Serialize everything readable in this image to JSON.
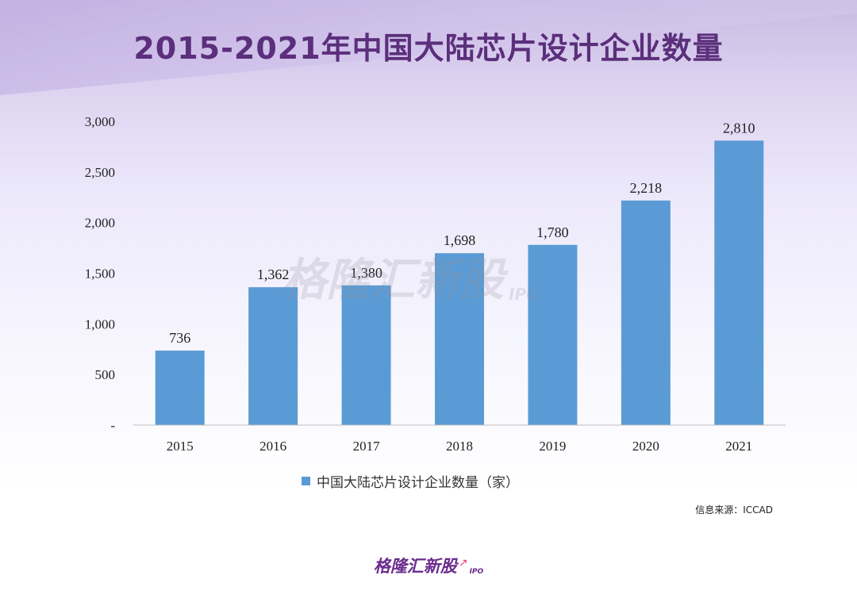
{
  "title": "2015-2021年中国大陆芯片设计企业数量",
  "chart_data": {
    "type": "bar",
    "title": "2015-2021年中国大陆芯片设计企业数量",
    "categories": [
      "2015",
      "2016",
      "2017",
      "2018",
      "2019",
      "2020",
      "2021"
    ],
    "series": [
      {
        "name": "中国大陆芯片设计企业数量（家）",
        "values": [
          736,
          1362,
          1380,
          1698,
          1780,
          2218,
          2810
        ],
        "color": "#5b9bd5"
      }
    ],
    "value_labels": [
      "736",
      "1,362",
      "1,380",
      "1,698",
      "1,780",
      "2,218",
      "2,810"
    ],
    "ylim": [
      0,
      3000
    ],
    "yticks": [
      0,
      500,
      1000,
      1500,
      2000,
      2500,
      3000
    ],
    "ytick_labels": [
      "-",
      "500",
      "1,000",
      "1,500",
      "2,000",
      "2,500",
      "3,000"
    ],
    "xlabel": "",
    "ylabel": "",
    "grid": false,
    "legend_position": "bottom"
  },
  "legend": {
    "label": "中国大陆芯片设计企业数量（家）"
  },
  "source": "信息来源：ICCAD",
  "watermark": {
    "main": "格隆汇新股",
    "sub": "IPO"
  },
  "footer_logo": {
    "main": "格隆汇新股",
    "sub": "IPO"
  },
  "colors": {
    "title": "#5b2f7c",
    "bar": "#5b9bd5",
    "logo": "#6a2c8e",
    "logo_arrow": "#e8417d"
  }
}
